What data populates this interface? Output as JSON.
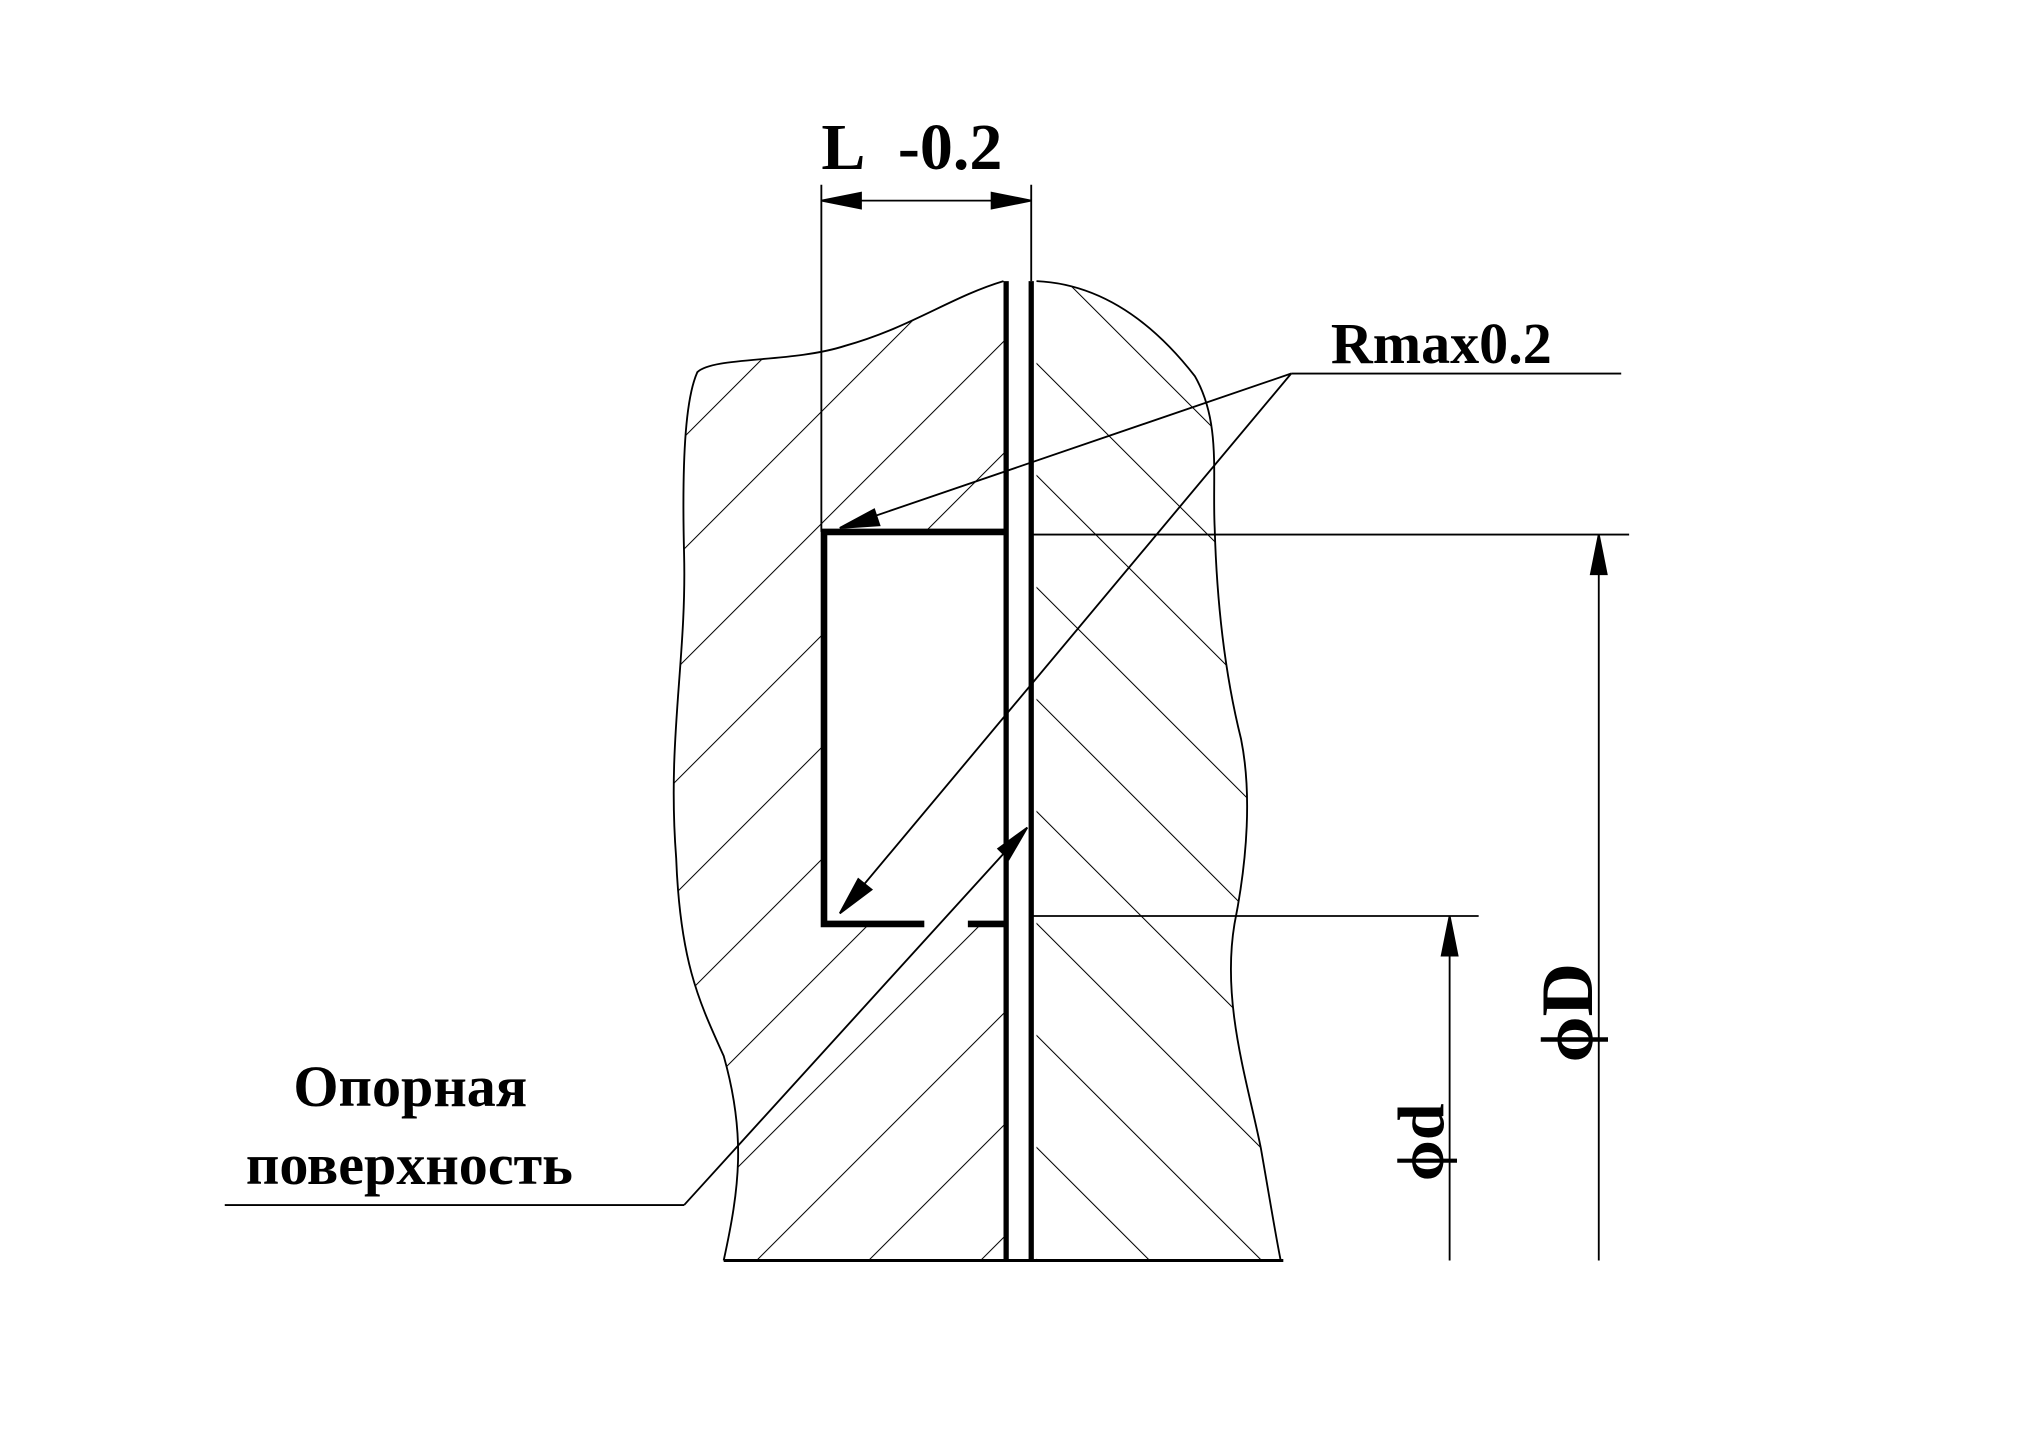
{
  "labels": {
    "length_symbol": "L",
    "length_tolerance": "-0.2",
    "roughness": "Rmax0.2",
    "support_line1": "Опорная",
    "support_line2": "поверхность",
    "diameter_small": "ϕd",
    "diameter_large": "ϕD"
  },
  "colors": {
    "ink": "#000000",
    "paper": "#ffffff"
  }
}
